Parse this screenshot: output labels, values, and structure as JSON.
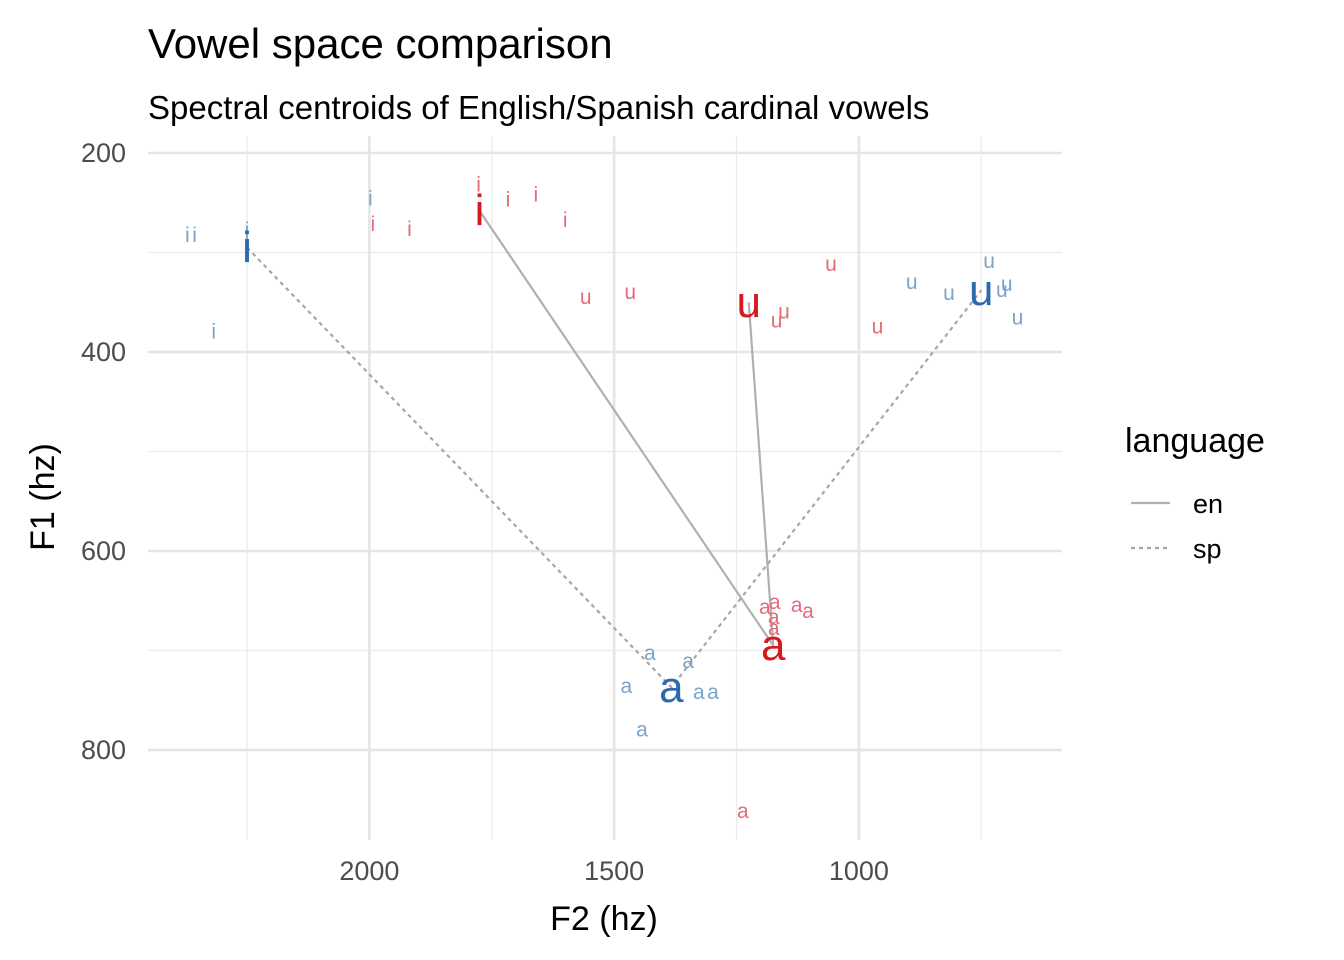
{
  "chart_data": {
    "type": "scatter",
    "title": "Vowel space comparison",
    "subtitle": "Spectral centroids of English/Spanish cardinal vowels",
    "xlabel": "F2 (hz)",
    "ylabel": "F1 (hz)",
    "xlim": [
      2400,
      820
    ],
    "ylim": [
      200,
      900
    ],
    "x_reversed": true,
    "y_reversed": true,
    "x_ticks": [
      2000,
      1500,
      1000
    ],
    "y_ticks": [
      200,
      400,
      600,
      800
    ],
    "grid": true,
    "legend": {
      "title": "language",
      "placement": "right",
      "entries": [
        {
          "label": "en",
          "linetype": "solid"
        },
        {
          "label": "sp",
          "linetype": "dotted"
        }
      ]
    },
    "colors": {
      "en": "#d7191c",
      "sp": "#2c6aad",
      "en_points": "#e36c78",
      "sp_points": "#7ba3cc",
      "line": "#b0b0b0"
    },
    "series": [
      {
        "name": "en",
        "centroids": [
          {
            "label": "i",
            "x": 1775,
            "y": 258
          },
          {
            "label": "u",
            "x": 1225,
            "y": 350
          },
          {
            "label": "a",
            "x": 1175,
            "y": 695
          }
        ],
        "points": [
          {
            "label": "i",
            "x": 1777,
            "y": 232
          },
          {
            "label": "i",
            "x": 1717,
            "y": 247
          },
          {
            "label": "i",
            "x": 1660,
            "y": 242
          },
          {
            "label": "i",
            "x": 1993,
            "y": 272
          },
          {
            "label": "i",
            "x": 1918,
            "y": 277
          },
          {
            "label": "i",
            "x": 1600,
            "y": 268
          },
          {
            "label": "u",
            "x": 1057,
            "y": 312
          },
          {
            "label": "u",
            "x": 1558,
            "y": 345
          },
          {
            "label": "u",
            "x": 1467,
            "y": 340
          },
          {
            "label": "u",
            "x": 1153,
            "y": 360
          },
          {
            "label": "u",
            "x": 1168,
            "y": 369
          },
          {
            "label": "u",
            "x": 962,
            "y": 375
          },
          {
            "label": "a",
            "x": 1172,
            "y": 652
          },
          {
            "label": "a",
            "x": 1192,
            "y": 657
          },
          {
            "label": "a",
            "x": 1127,
            "y": 655
          },
          {
            "label": "a",
            "x": 1104,
            "y": 661
          },
          {
            "label": "a",
            "x": 1174,
            "y": 667
          },
          {
            "label": "a",
            "x": 1174,
            "y": 678
          },
          {
            "label": "a",
            "x": 1237,
            "y": 862
          }
        ]
      },
      {
        "name": "sp",
        "centroids": [
          {
            "label": "i",
            "x": 2250,
            "y": 295
          },
          {
            "label": "u",
            "x": 750,
            "y": 338
          },
          {
            "label": "a",
            "x": 1383,
            "y": 737
          }
        ],
        "points": [
          {
            "label": "i",
            "x": 1998,
            "y": 246
          },
          {
            "label": "i",
            "x": 2250,
            "y": 278
          },
          {
            "label": "i",
            "x": 2372,
            "y": 283
          },
          {
            "label": "i",
            "x": 2357,
            "y": 283
          },
          {
            "label": "i",
            "x": 2250,
            "y": 289
          },
          {
            "label": "i",
            "x": 2250,
            "y": 302
          },
          {
            "label": "i",
            "x": 2318,
            "y": 380
          },
          {
            "label": "u",
            "x": 734,
            "y": 309
          },
          {
            "label": "u",
            "x": 698,
            "y": 332
          },
          {
            "label": "u",
            "x": 892,
            "y": 330
          },
          {
            "label": "u",
            "x": 816,
            "y": 341
          },
          {
            "label": "u",
            "x": 708,
            "y": 338
          },
          {
            "label": "u",
            "x": 676,
            "y": 366
          },
          {
            "label": "a",
            "x": 1427,
            "y": 703
          },
          {
            "label": "a",
            "x": 1349,
            "y": 711
          },
          {
            "label": "a",
            "x": 1475,
            "y": 736
          },
          {
            "label": "a",
            "x": 1327,
            "y": 742
          },
          {
            "label": "a",
            "x": 1298,
            "y": 742
          },
          {
            "label": "a",
            "x": 1443,
            "y": 780
          }
        ]
      }
    ]
  }
}
